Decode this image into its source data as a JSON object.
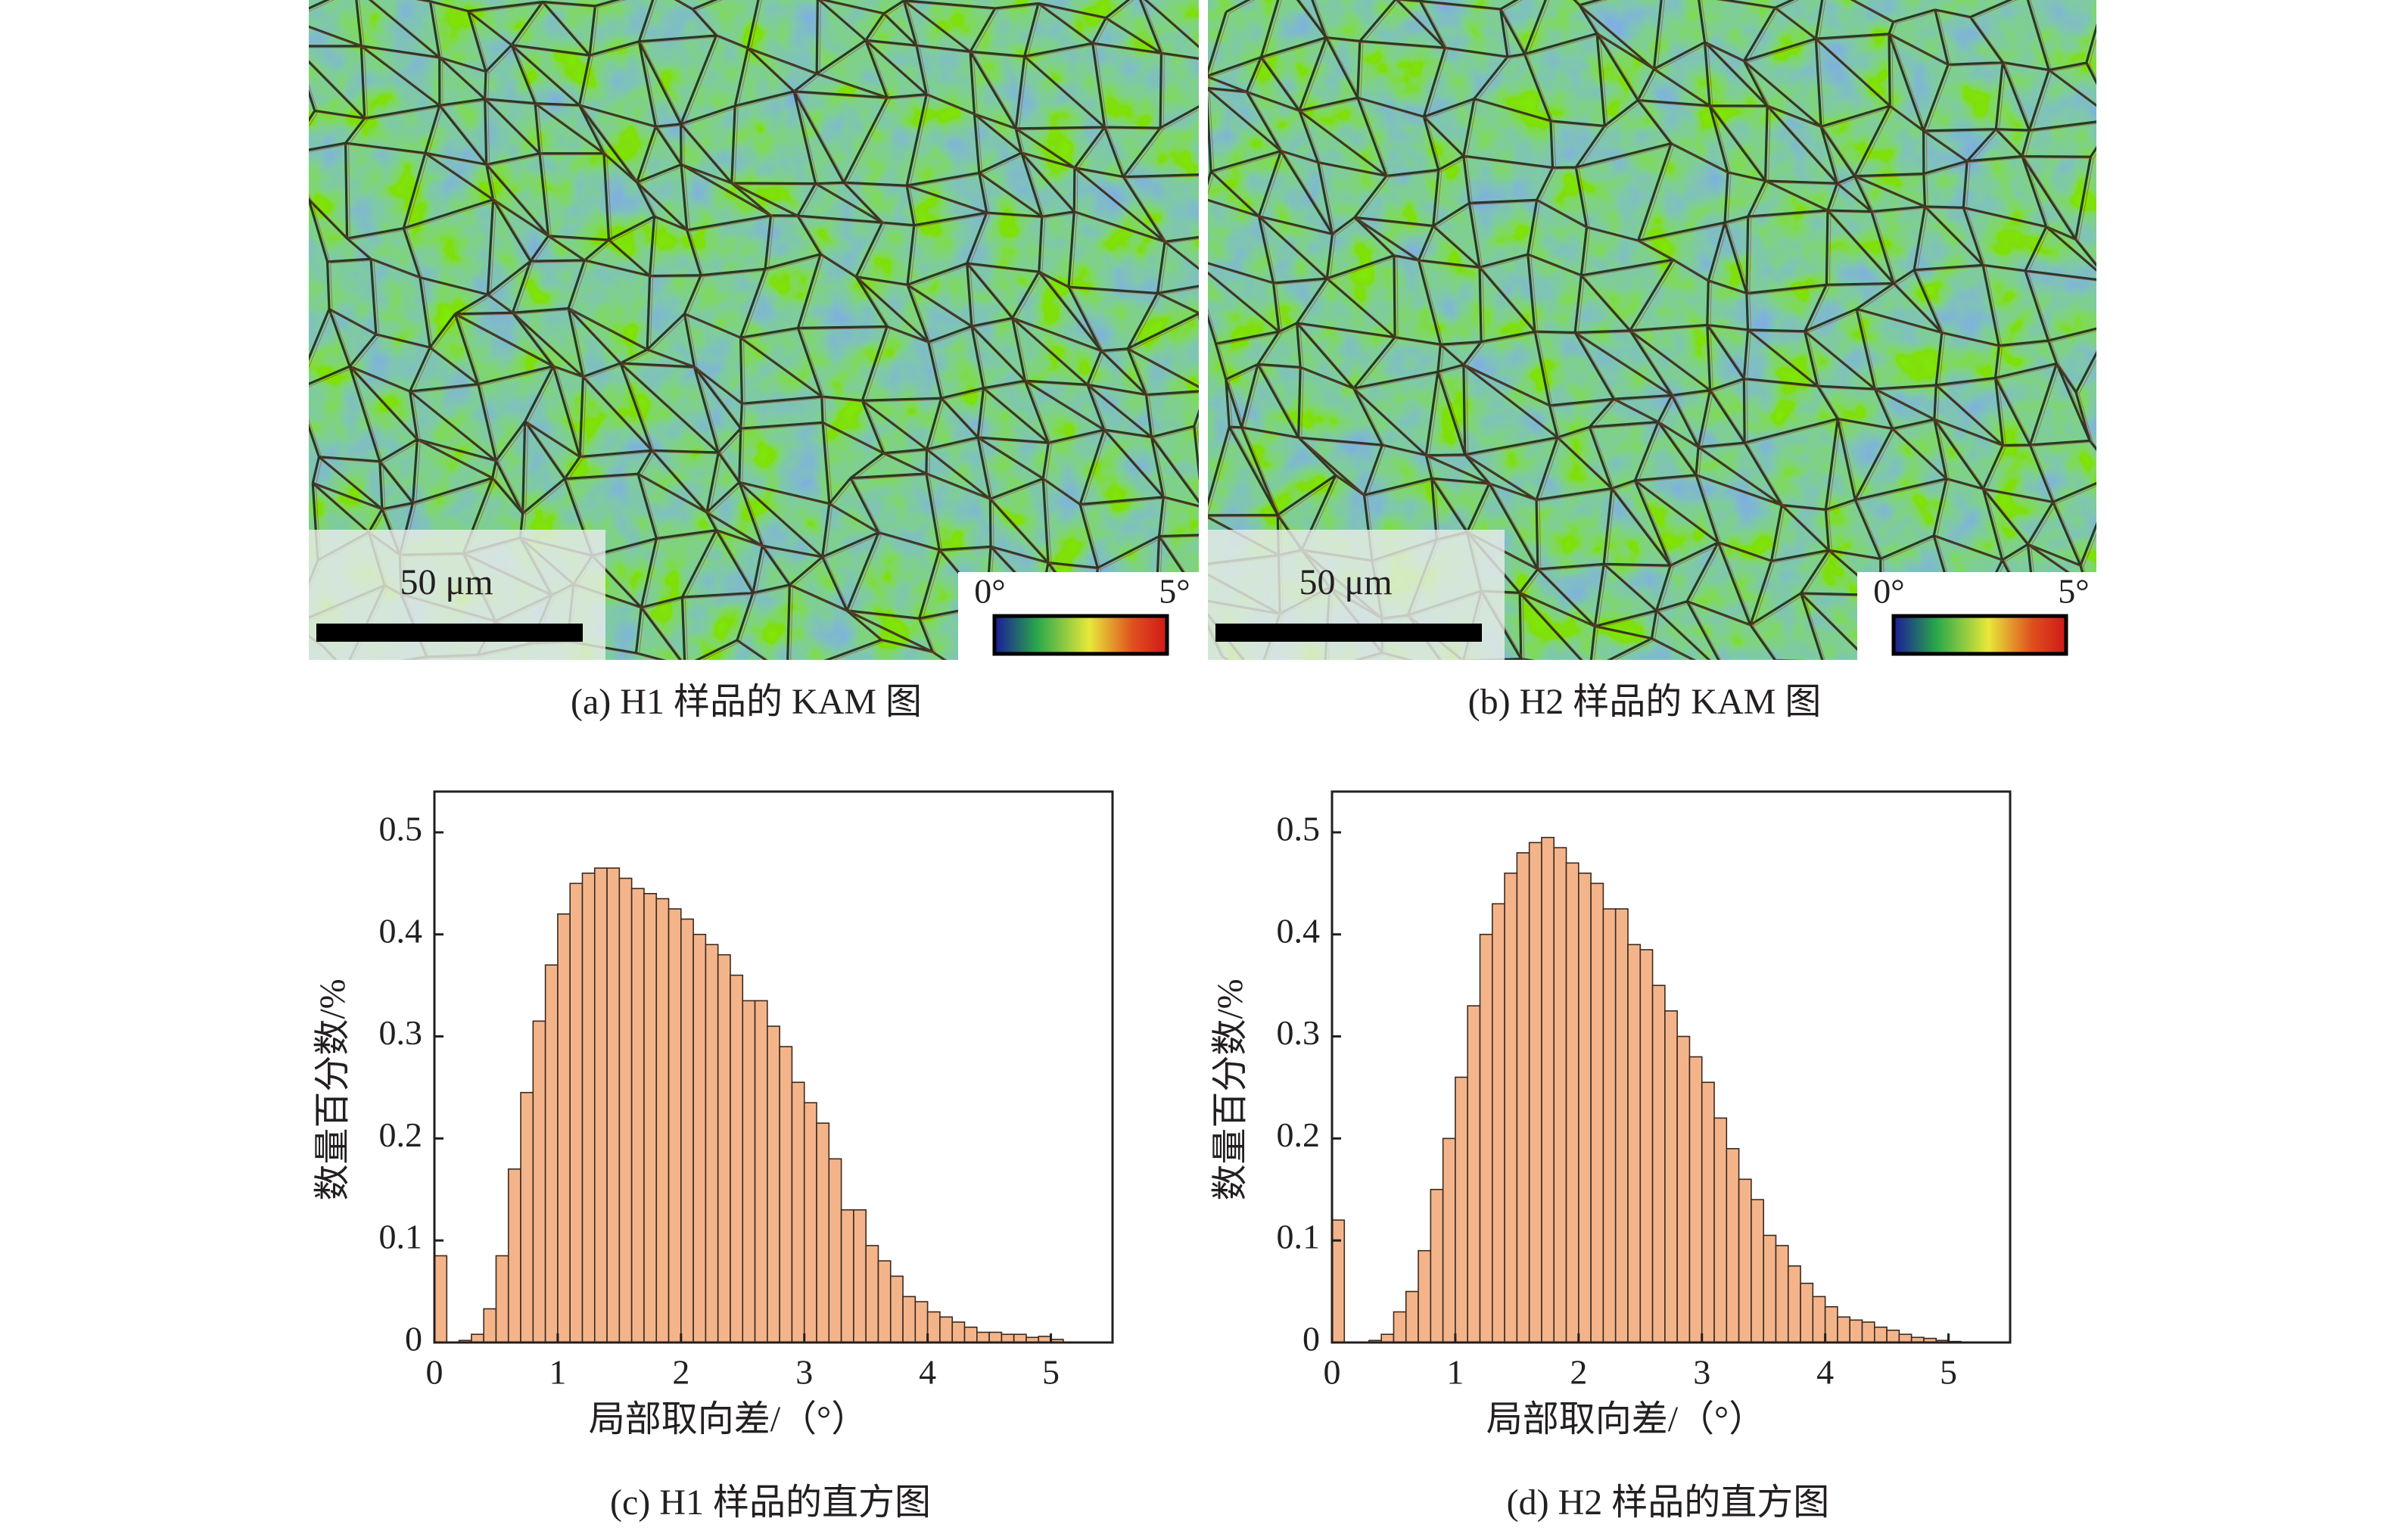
{
  "panels": [
    {
      "caption": "(a) H1 样品的 KAM 图",
      "scale_bar": "50 μm",
      "colorbar_min": "0°",
      "colorbar_max": "5°"
    },
    {
      "caption": "(b) H2 样品的 KAM 图",
      "scale_bar": "50 μm",
      "colorbar_min": "0°",
      "colorbar_max": "5°"
    }
  ],
  "chart_data": [
    {
      "type": "histogram",
      "caption": "(c) H1 样品的直方图",
      "xlabel": "局部取向差/（°）",
      "ylabel": "数量百分数/%",
      "color": "#f4b48a",
      "edgecolor": "#3a2a20",
      "bins": [
        0,
        0.1,
        0.2,
        0.3,
        0.4,
        0.5,
        0.6,
        0.7,
        0.8,
        0.9,
        1.0,
        1.1,
        1.2,
        1.3,
        1.4,
        1.5,
        1.6,
        1.7,
        1.8,
        1.9,
        2.0,
        2.1,
        2.2,
        2.3,
        2.4,
        2.5,
        2.6,
        2.7,
        2.8,
        2.9,
        3.0,
        3.1,
        3.2,
        3.3,
        3.4,
        3.5,
        3.6,
        3.7,
        3.8,
        3.9,
        4.0,
        4.1,
        4.2,
        4.3,
        4.4,
        4.5,
        4.6,
        4.7,
        4.8,
        4.9,
        5.0,
        5.1
      ],
      "values": [
        0.085,
        0,
        0.002,
        0.008,
        0.033,
        0.085,
        0.17,
        0.245,
        0.315,
        0.37,
        0.42,
        0.45,
        0.46,
        0.465,
        0.465,
        0.455,
        0.445,
        0.44,
        0.435,
        0.425,
        0.415,
        0.4,
        0.39,
        0.38,
        0.36,
        0.335,
        0.335,
        0.31,
        0.29,
        0.255,
        0.235,
        0.215,
        0.18,
        0.13,
        0.13,
        0.095,
        0.08,
        0.065,
        0.045,
        0.04,
        0.03,
        0.025,
        0.02,
        0.015,
        0.01,
        0.01,
        0.008,
        0.008,
        0.005,
        0.006,
        0.003
      ],
      "xlim": [
        0,
        5.5
      ],
      "ylim": [
        0,
        0.54
      ],
      "xticks": [
        0,
        1,
        2,
        3,
        4,
        5
      ],
      "yticks": [
        0,
        0.1,
        0.2,
        0.3,
        0.4,
        0.5
      ]
    },
    {
      "type": "histogram",
      "caption": "(d) H2 样品的直方图",
      "xlabel": "局部取向差/（°）",
      "ylabel": "数量百分数/%",
      "color": "#f4b48a",
      "edgecolor": "#3a2a20",
      "bins": [
        0,
        0.1,
        0.2,
        0.3,
        0.4,
        0.5,
        0.6,
        0.7,
        0.8,
        0.9,
        1.0,
        1.1,
        1.2,
        1.3,
        1.4,
        1.5,
        1.6,
        1.7,
        1.8,
        1.9,
        2.0,
        2.1,
        2.2,
        2.3,
        2.4,
        2.5,
        2.6,
        2.7,
        2.8,
        2.9,
        3.0,
        3.1,
        3.2,
        3.3,
        3.4,
        3.5,
        3.6,
        3.7,
        3.8,
        3.9,
        4.0,
        4.1,
        4.2,
        4.3,
        4.4,
        4.5,
        4.6,
        4.7,
        4.8,
        4.9,
        5.0,
        5.1
      ],
      "values": [
        0.12,
        0,
        0,
        0.002,
        0.008,
        0.03,
        0.05,
        0.09,
        0.15,
        0.2,
        0.26,
        0.33,
        0.4,
        0.43,
        0.46,
        0.48,
        0.49,
        0.495,
        0.485,
        0.47,
        0.46,
        0.45,
        0.425,
        0.425,
        0.39,
        0.385,
        0.35,
        0.325,
        0.3,
        0.28,
        0.255,
        0.22,
        0.19,
        0.16,
        0.14,
        0.105,
        0.095,
        0.075,
        0.058,
        0.045,
        0.035,
        0.025,
        0.022,
        0.02,
        0.015,
        0.012,
        0.008,
        0.005,
        0.004,
        0.002,
        0.001
      ],
      "xlim": [
        0,
        5.5
      ],
      "ylim": [
        0,
        0.54
      ],
      "xticks": [
        0,
        1,
        2,
        3,
        4,
        5
      ],
      "yticks": [
        0,
        0.1,
        0.2,
        0.3,
        0.4,
        0.5
      ]
    }
  ]
}
